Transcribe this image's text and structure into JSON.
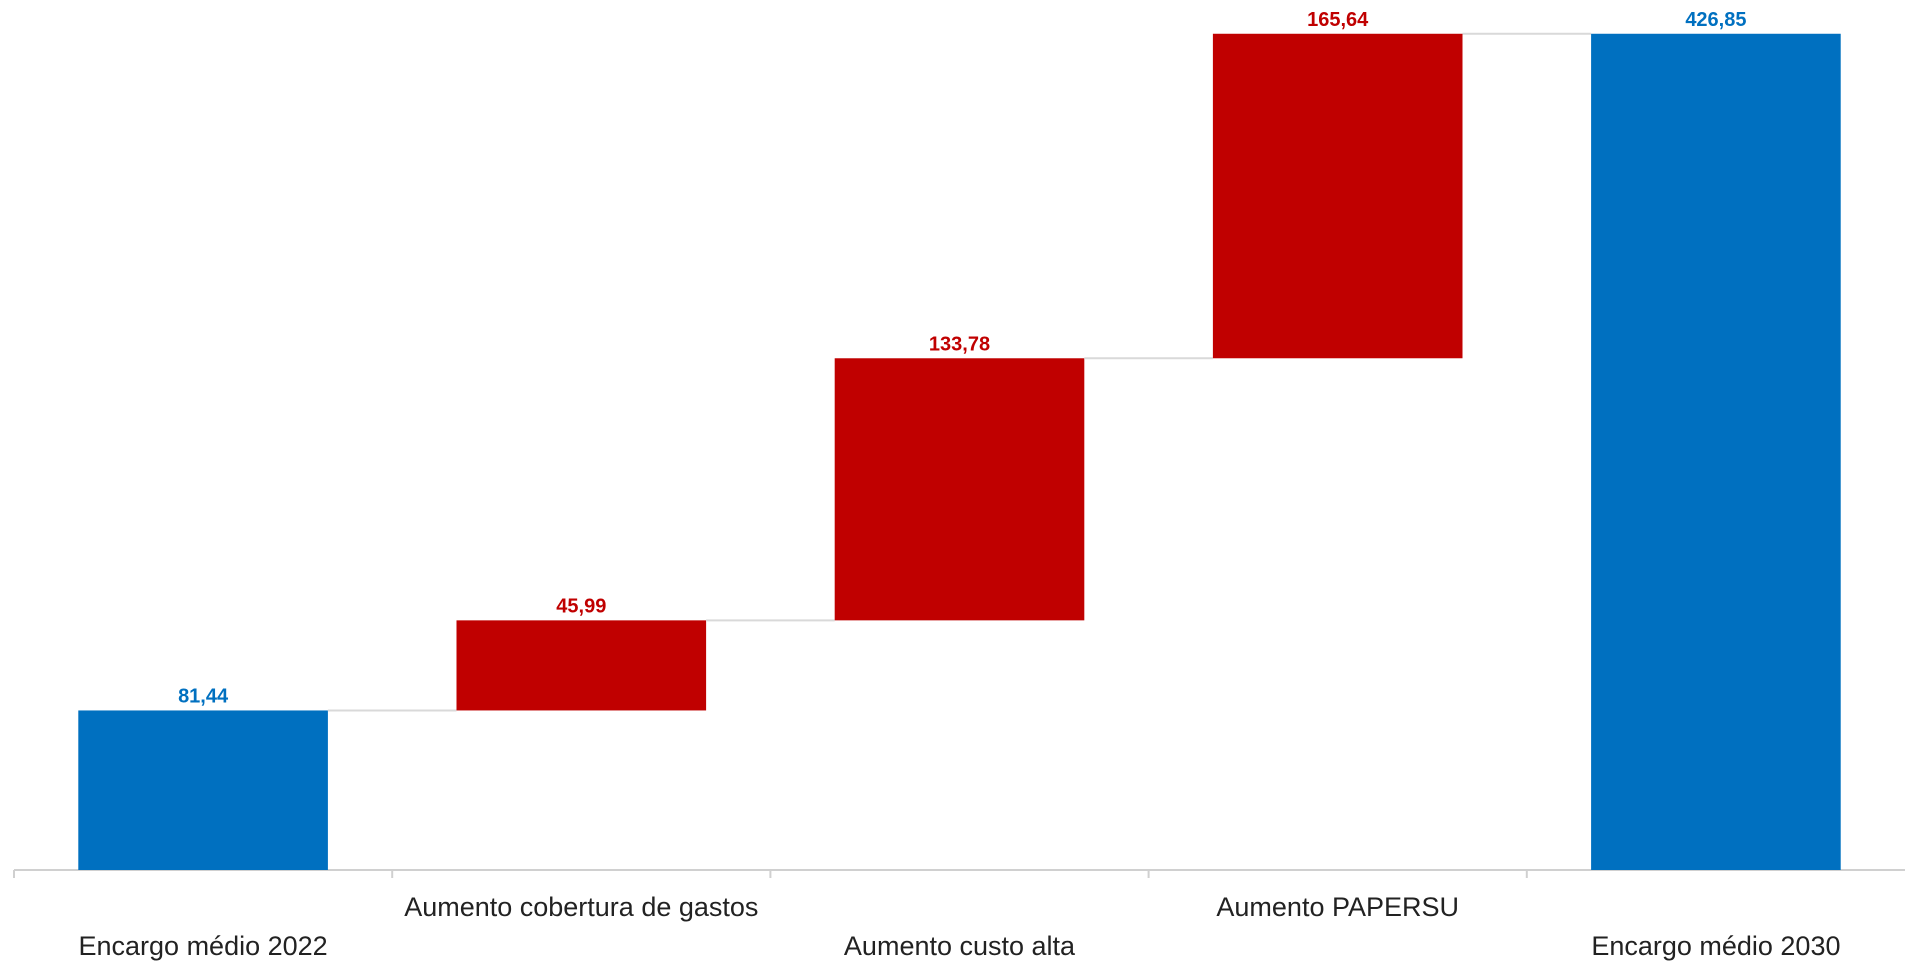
{
  "chart_data": {
    "type": "waterfall",
    "categories": [
      "Encargo médio 2022",
      "Aumento cobertura de gastos",
      "Aumento custo alta",
      "Aumento PAPERSU",
      "Encargo médio 2030"
    ],
    "values": [
      81.44,
      45.99,
      133.78,
      165.64,
      426.85
    ],
    "value_labels": [
      "81,44",
      "45,99",
      "133,78",
      "165,64",
      "426,85"
    ],
    "measures": [
      "total",
      "increase",
      "increase",
      "increase",
      "total"
    ],
    "total_color": "#0070c0",
    "increase_color": "#c00000",
    "ylim": [
      0,
      440
    ]
  }
}
